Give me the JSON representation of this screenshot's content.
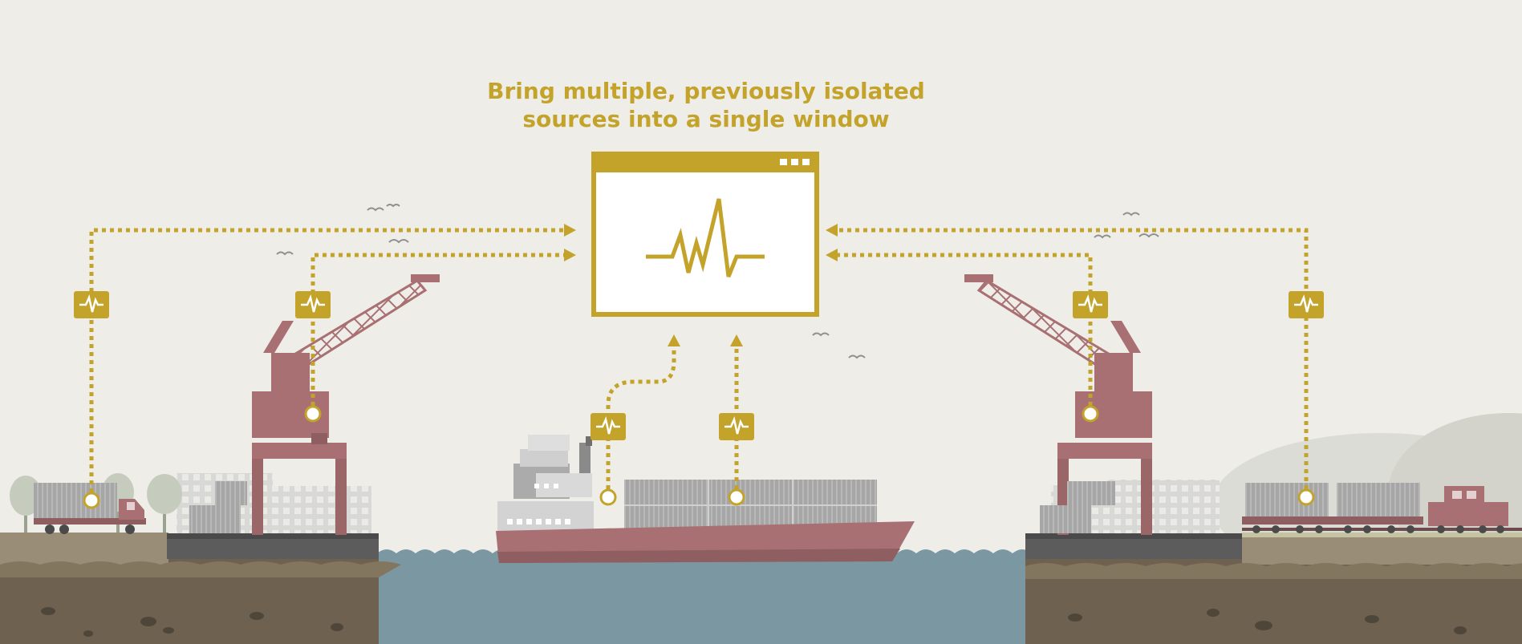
{
  "headline": {
    "line1": "Bring multiple, previously isolated",
    "line2": "sources into a single window"
  },
  "colors": {
    "accent": "#c3a32a",
    "background": "#eeede8",
    "crane": "#a87072",
    "water": "#7b97a1",
    "soil": "#6e6150",
    "grass": "#c6c3a3",
    "container": "#a3a3a3",
    "building": "#d3d3d3"
  },
  "icons": {
    "window": "signal-window-icon",
    "source_badge": "pulse-icon",
    "source_point": "node-icon"
  },
  "sources": [
    "truck",
    "left-crane",
    "ship-bridge",
    "ship-containers",
    "right-crane",
    "train"
  ]
}
